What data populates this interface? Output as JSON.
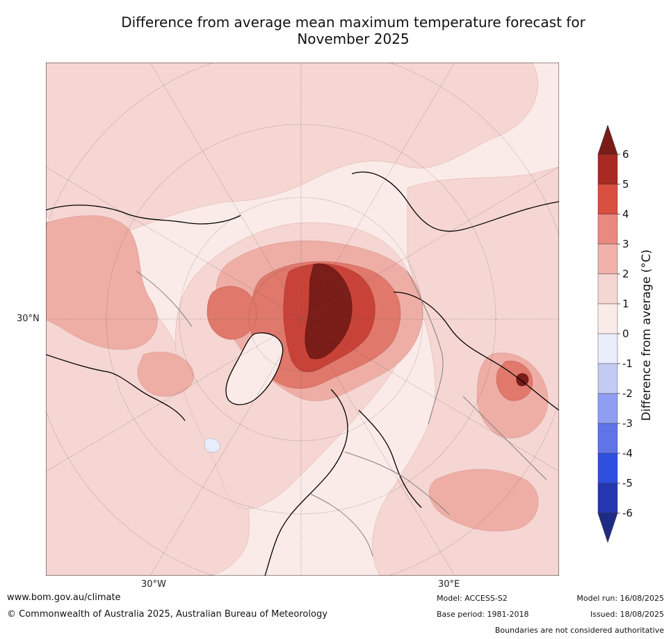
{
  "title_line1": "Difference from average mean maximum temperature forecast for",
  "title_line2": "November 2025",
  "axis_labels": {
    "lat": "30°N",
    "lon_west": "30°W",
    "lon_east": "30°E"
  },
  "colorbar": {
    "label": "Difference from average (°C)",
    "ticks": [
      "6",
      "5",
      "4",
      "3",
      "2",
      "1",
      "0",
      "-1",
      "-2",
      "-3",
      "-4",
      "-5",
      "-6"
    ],
    "colors": [
      "#7a1c18",
      "#a82a22",
      "#d94f40",
      "#e88a7f",
      "#f0b2aa",
      "#f5d6d2",
      "#fbebe8",
      "#e8ecfb",
      "#c3cbf2",
      "#8f9ef0",
      "#5f75e6",
      "#2f4fe0",
      "#2437b0",
      "#1d2b86"
    ],
    "min": -6,
    "max": 6
  },
  "map_colors": {
    "ocean_bg": "#fbebe8",
    "light_warm": "#f5d6d2",
    "warm": "#eeaea6",
    "hot": "#e0786c",
    "hotter": "#c94238",
    "hottest": "#7a1c18",
    "cool": "#e8ecfb",
    "coast": "#000000",
    "border": "#808080"
  },
  "footer": {
    "website": "www.bom.gov.au/climate",
    "copyright": "© Commonwealth of Australia 2025, Australian Bureau of Meteorology",
    "model": "Model: ACCESS-S2",
    "base_period": "Base period: 1981-2018",
    "model_run": "Model run: 16/08/2025",
    "issued": "Issued: 18/08/2025",
    "disclaimer": "Boundaries are not considered authoritative"
  }
}
